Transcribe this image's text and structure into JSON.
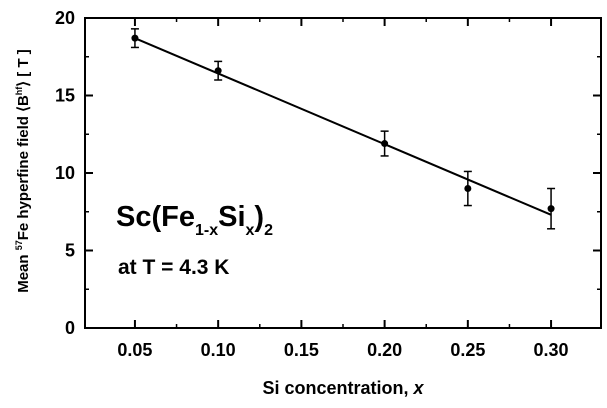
{
  "chart_data": {
    "type": "scatter",
    "xlabel": {
      "text": "Si concentration, ",
      "var": "x"
    },
    "ylabel": {
      "prefix": "Mean ",
      "iso_sup": "57",
      "mid": "Fe hyperfine field ⟨B",
      "field_sup": "hf",
      "suffix": "⟩ [ T ]"
    },
    "annotation": {
      "formula_parts": [
        "Sc(Fe",
        "1-x",
        "Si",
        "x",
        ")",
        "2"
      ],
      "condition": "at T = 4.3 K"
    },
    "xlim": [
      0.02,
      0.33
    ],
    "ylim": [
      0,
      20
    ],
    "x_ticks": [
      0.05,
      0.1,
      0.15,
      0.2,
      0.25,
      0.3
    ],
    "x_tick_labels": [
      "0.05",
      "0.10",
      "0.15",
      "0.20",
      "0.25",
      "0.30"
    ],
    "y_ticks": [
      0,
      5,
      10,
      15,
      20
    ],
    "y_tick_labels": [
      "0",
      "5",
      "10",
      "15",
      "20"
    ],
    "points": [
      {
        "x": 0.05,
        "y": 18.7,
        "err": 0.6
      },
      {
        "x": 0.1,
        "y": 16.6,
        "err": 0.6
      },
      {
        "x": 0.2,
        "y": 11.9,
        "err": 0.8
      },
      {
        "x": 0.25,
        "y": 9.0,
        "err": 1.1
      },
      {
        "x": 0.3,
        "y": 7.7,
        "err": 1.3
      }
    ],
    "fit_line": {
      "x": [
        0.05,
        0.3
      ],
      "y": [
        18.7,
        7.3
      ]
    },
    "grid": false,
    "legend": "none"
  }
}
